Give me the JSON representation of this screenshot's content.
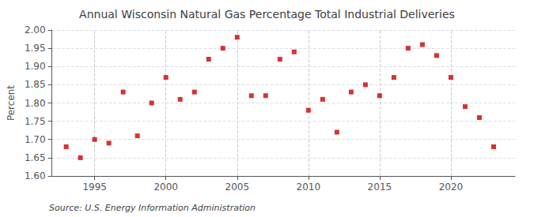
{
  "chart_data": {
    "type": "scatter",
    "title": "Annual Wisconsin Natural Gas Percentage Total Industrial Deliveries",
    "ylabel": "Percent",
    "annotation": "Source: U.S. Energy Information Administration",
    "x": [
      1993,
      1994,
      1995,
      1996,
      1997,
      1998,
      1999,
      2000,
      2001,
      2002,
      2003,
      2004,
      2005,
      2006,
      2007,
      2008,
      2009,
      2010,
      2011,
      2012,
      2013,
      2014,
      2015,
      2016,
      2017,
      2018,
      2019,
      2020,
      2021,
      2022,
      2023
    ],
    "values": [
      1.68,
      1.65,
      1.7,
      1.69,
      1.83,
      1.71,
      1.8,
      1.87,
      1.81,
      1.83,
      1.92,
      1.95,
      1.98,
      1.82,
      1.82,
      1.92,
      1.94,
      1.78,
      1.81,
      1.72,
      1.83,
      1.85,
      1.82,
      1.87,
      1.95,
      1.96,
      1.93,
      1.87,
      1.79,
      1.76,
      1.68
    ],
    "color": "#cc0000",
    "marker": "square",
    "xlim": [
      1992.0,
      2024.5
    ],
    "xticks": [
      1995,
      2000,
      2005,
      2010,
      2015,
      2020
    ],
    "ylim": [
      1.6,
      2.0
    ],
    "yticks": [
      {
        "value": 1.6,
        "label": "1.60"
      },
      1.65,
      {
        "value": 1.7,
        "label": "1.70"
      },
      1.75,
      {
        "value": 1.8,
        "label": "1.80"
      },
      1.85,
      {
        "value": 1.9,
        "label": "1.90"
      },
      1.95,
      {
        "value": 2.0,
        "label": "2.00"
      }
    ],
    "grid": true
  }
}
